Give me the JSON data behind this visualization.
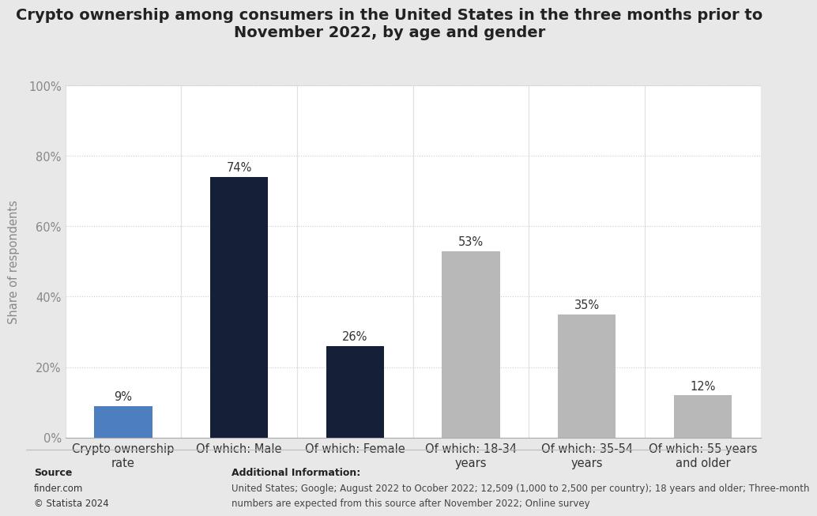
{
  "title_line1": "Crypto ownership among consumers in the United States in the three months prior to",
  "title_line2": "November 2022, by age and gender",
  "categories": [
    "Crypto ownership\nrate",
    "Of which: Male",
    "Of which: Female",
    "Of which: 18-34\nyears",
    "Of which: 35-54\nyears",
    "Of which: 55 years\nand older"
  ],
  "values": [
    9,
    74,
    26,
    53,
    35,
    12
  ],
  "bar_colors": [
    "#4d7ebf",
    "#152038",
    "#152038",
    "#b8b8b8",
    "#b8b8b8",
    "#b8b8b8"
  ],
  "ylabel": "Share of respondents",
  "ylim": [
    0,
    100
  ],
  "yticks": [
    0,
    20,
    40,
    60,
    80,
    100
  ],
  "ytick_labels": [
    "0%",
    "20%",
    "40%",
    "60%",
    "80%",
    "100%"
  ],
  "title_fontsize": 14,
  "label_fontsize": 10.5,
  "tick_fontsize": 10.5,
  "value_fontsize": 10.5,
  "source_bold": "Source",
  "source_normal": "finder.com\n© Statista 2024",
  "additional_bold": "Additional Information:",
  "additional_normal": "United States; Google; August 2022 to Ocober 2022; 12,509 (1,000 to 2,500 per country); 18 years and older; Three-month\nnumbers are expected from this source after November 2022; Online survey",
  "background_color": "#e8e8e8",
  "plot_background_color": "#ffffff",
  "grid_color": "#cccccc",
  "bar_width": 0.5,
  "col_divider_color": "#e0e0e0"
}
